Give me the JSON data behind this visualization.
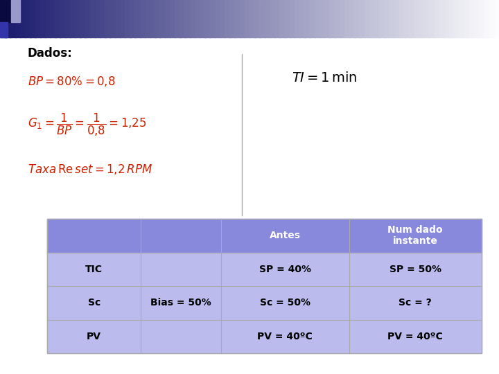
{
  "title": "Dados:",
  "bg_color": "#ffffff",
  "header_bg": "#8888dd",
  "row_bg": "#bbbbee",
  "border_color": "#aaaaaa",
  "table": {
    "headers": [
      "",
      "",
      "Antes",
      "Num dado\ninstante"
    ],
    "rows": [
      [
        "TIC",
        "",
        "SP = 40%",
        "SP = 50%"
      ],
      [
        "Sc",
        "Bias = 50%",
        "Sc = 50%",
        "Sc = ?"
      ],
      [
        "PV",
        "",
        "PV = 40ºC",
        "PV = 40ºC"
      ]
    ]
  },
  "top_bar_dark": "#1a1a6e",
  "top_bar_light": "#ffffff",
  "top_square_dark": "#0a0a40",
  "formula_color": "#000000",
  "ti_color": "#000000",
  "divider_color": "#aaaaaa"
}
